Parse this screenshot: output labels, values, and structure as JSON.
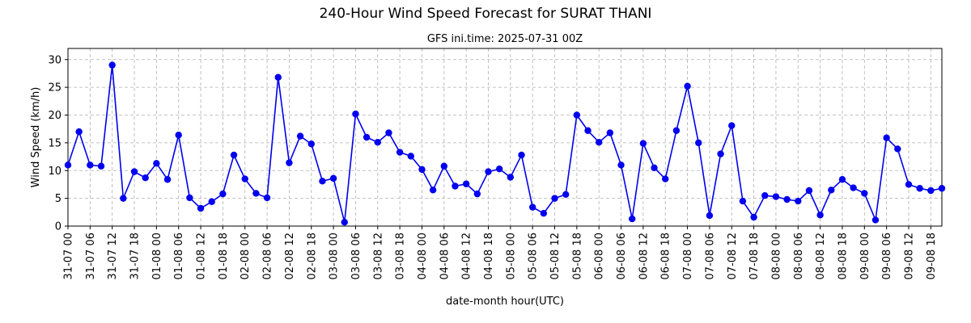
{
  "chart_data": {
    "type": "line",
    "title": "240-Hour Wind Speed Forecast for SURAT THANI",
    "subtitle": "GFS ini.time: 2025-07-31 00Z",
    "xlabel": "date-month hour(UTC)",
    "ylabel": "Wind Speed (km/h)",
    "ylim": [
      0,
      32
    ],
    "yticks": [
      0,
      5,
      10,
      15,
      20,
      25,
      30
    ],
    "grid": true,
    "x_range": [
      0,
      237
    ],
    "x_step_hours": 3,
    "xtick_interval": 2,
    "xtick_labels": [
      "31-07 00",
      "31-07 06",
      "31-07 12",
      "31-07 18",
      "01-08 00",
      "01-08 06",
      "01-08 12",
      "01-08 18",
      "02-08 00",
      "02-08 06",
      "02-08 12",
      "02-08 18",
      "03-08 00",
      "03-08 06",
      "03-08 12",
      "03-08 18",
      "04-08 00",
      "04-08 06",
      "04-08 12",
      "04-08 18",
      "05-08 00",
      "05-08 06",
      "05-08 12",
      "05-08 18",
      "06-08 00",
      "06-08 06",
      "06-08 12",
      "06-08 18",
      "07-08 00",
      "07-08 06",
      "07-08 12",
      "07-08 18",
      "08-08 00",
      "08-08 06",
      "08-08 12",
      "08-08 18",
      "09-08 00",
      "09-08 06",
      "09-08 12",
      "09-08 18"
    ],
    "series": [
      {
        "name": "",
        "color": "#0000ee",
        "values": [
          11.0,
          17.0,
          11.0,
          10.8,
          29.0,
          5.0,
          9.8,
          8.7,
          11.3,
          8.4,
          16.4,
          5.1,
          3.2,
          4.4,
          5.8,
          12.8,
          8.5,
          5.9,
          5.1,
          26.8,
          11.4,
          16.2,
          14.8,
          8.1,
          8.6,
          0.7,
          20.2,
          16.0,
          15.1,
          16.8,
          13.3,
          12.6,
          10.2,
          6.5,
          10.8,
          7.2,
          7.6,
          5.8,
          9.8,
          10.3,
          8.8,
          12.8,
          3.4,
          2.3,
          5.0,
          5.7,
          20.0,
          17.2,
          15.1,
          16.8,
          11.0,
          1.3,
          14.9,
          10.5,
          8.5,
          17.2,
          25.2,
          15.0,
          1.9,
          13.0,
          18.1,
          4.5,
          1.6,
          5.5,
          5.3,
          4.8,
          4.5,
          6.4,
          2.0,
          6.5,
          8.4,
          6.9,
          5.9,
          1.1,
          15.9,
          13.9,
          7.5,
          6.8,
          6.4,
          6.8
        ]
      }
    ]
  }
}
